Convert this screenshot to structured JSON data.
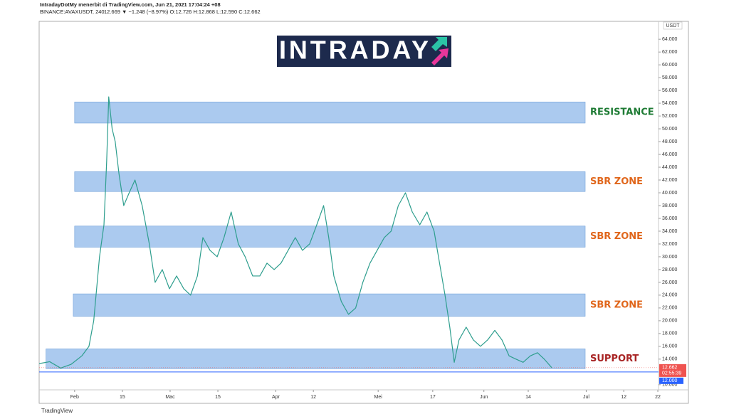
{
  "header": {
    "publisher": "IntradayDotMy menerbit di TradingView.com, Jun 21, 2021 17:04:24 +08",
    "symbol": "BINANCE:AVAXUSDT, 240",
    "quote": "12.669 ▼ −1.248 (−8.97%) O:12.726 H:12.868 L:12.590 C:12.662"
  },
  "logo": "INTRADAY",
  "footer": "TradingView",
  "chart_data": {
    "type": "line",
    "currency": "USDT",
    "series": [
      {
        "name": "AVAXUSDT",
        "color": "#2e9e8e",
        "x": [
          21.6,
          24.7,
          27.9,
          31,
          34.1,
          36.2,
          37.6,
          39.3,
          40.6,
          41.4,
          42,
          43,
          43.9,
          45,
          46.4,
          48,
          49.7,
          51.8,
          53.9,
          55.6,
          57.7,
          59.8,
          61.9,
          64,
          66,
          68,
          69.6,
          71.7,
          73.8,
          75.8,
          77.9,
          80,
          82,
          84.2,
          86.3,
          88.4,
          90.5,
          92.5,
          94.6,
          96.7,
          98.8,
          100.9,
          103,
          105,
          106.5,
          108,
          110.2,
          112.3,
          114.4,
          116.5,
          118.6,
          120.7,
          122.8,
          124.8,
          126.9,
          129,
          131,
          133.2,
          135.3,
          137.4,
          139,
          140.6,
          142,
          143.3,
          144.7,
          146.8,
          148.9,
          151,
          153.1,
          155.2,
          157.3,
          159.4,
          161.4,
          163.5,
          165.6,
          167.7,
          169.7,
          171.9
        ],
        "values": [
          13.3,
          13.6,
          12.6,
          13.2,
          14.5,
          16,
          20,
          30,
          35,
          45,
          55,
          50,
          48,
          43,
          38,
          40,
          42,
          38,
          32,
          26,
          28,
          25,
          27,
          25,
          24,
          27,
          33,
          31,
          30,
          33,
          37,
          32,
          30,
          27,
          27,
          29,
          28,
          29,
          31,
          33,
          31,
          32,
          35,
          38,
          33,
          27,
          23,
          21,
          22,
          26,
          29,
          31,
          33,
          34,
          38,
          40,
          37,
          35,
          37,
          34,
          29,
          24,
          19,
          13.5,
          17,
          19,
          17,
          16,
          17,
          18.5,
          17,
          14.5,
          14,
          13.5,
          14.5,
          15,
          14,
          12.662
        ]
      }
    ],
    "zones": [
      {
        "label": "RESISTANCE",
        "color": "#1e7b34",
        "low": 50.9,
        "high": 54.2,
        "start": 32,
        "end": 181.7
      },
      {
        "label": "SBR ZONE",
        "color": "#e0661b",
        "low": 40.2,
        "high": 43.3,
        "start": 32,
        "end": 181.7
      },
      {
        "label": "SBR ZONE",
        "color": "#e0661b",
        "low": 31.5,
        "high": 34.8,
        "start": 32,
        "end": 181.7
      },
      {
        "label": "SBR ZONE",
        "color": "#e0661b",
        "low": 20.7,
        "high": 24.2,
        "start": 31.6,
        "end": 181.7
      },
      {
        "label": "SUPPORT",
        "color": "#a82424",
        "low": 12.5,
        "high": 15.6,
        "start": 23.6,
        "end": 181.7
      }
    ],
    "last_price": 12.662,
    "countdown": "02:55:39",
    "alert_line": {
      "value": 12,
      "label": "12.000"
    },
    "xlim": [
      21.6,
      203.2
    ],
    "xticks": [
      {
        "value": 32,
        "label": "Feb"
      },
      {
        "value": 46,
        "label": "15"
      },
      {
        "value": 60,
        "label": "Mac"
      },
      {
        "value": 74,
        "label": "15"
      },
      {
        "value": 91,
        "label": "Apr"
      },
      {
        "value": 102,
        "label": "12"
      },
      {
        "value": 121,
        "label": "Mei"
      },
      {
        "value": 137,
        "label": "17"
      },
      {
        "value": 152,
        "label": "Jun"
      },
      {
        "value": 165,
        "label": "14"
      },
      {
        "value": 182,
        "label": "Jul"
      },
      {
        "value": 193,
        "label": "12"
      },
      {
        "value": 203,
        "label": "22"
      }
    ],
    "ylim": [
      9.2,
      66.8
    ],
    "yticks": [
      {
        "value": 10,
        "label": "10.000"
      },
      {
        "value": 14,
        "label": "14.000"
      },
      {
        "value": 16,
        "label": "16.000"
      },
      {
        "value": 18,
        "label": "18.000"
      },
      {
        "value": 20,
        "label": "20.000"
      },
      {
        "value": 22,
        "label": "22.000"
      },
      {
        "value": 24,
        "label": "24.000"
      },
      {
        "value": 26,
        "label": "26.000"
      },
      {
        "value": 28,
        "label": "28.000"
      },
      {
        "value": 30,
        "label": "30.000"
      },
      {
        "value": 32,
        "label": "32.000"
      },
      {
        "value": 34,
        "label": "34.000"
      },
      {
        "value": 36,
        "label": "36.000"
      },
      {
        "value": 38,
        "label": "38.000"
      },
      {
        "value": 40,
        "label": "40.000"
      },
      {
        "value": 42,
        "label": "42.000"
      },
      {
        "value": 44,
        "label": "44.000"
      },
      {
        "value": 46,
        "label": "46.000"
      },
      {
        "value": 48,
        "label": "48.000"
      },
      {
        "value": 50,
        "label": "50.000"
      },
      {
        "value": 52,
        "label": "52.000"
      },
      {
        "value": 54,
        "label": "54.000"
      },
      {
        "value": 56,
        "label": "56.000"
      },
      {
        "value": 58,
        "label": "58.000"
      },
      {
        "value": 60,
        "label": "60.000"
      },
      {
        "value": 62,
        "label": "62.000"
      },
      {
        "value": 64,
        "label": "64.000"
      }
    ]
  }
}
